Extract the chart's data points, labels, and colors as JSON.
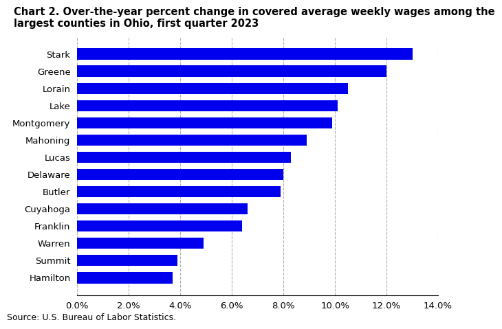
{
  "title_line1": "Chart 2. Over-the-year percent change in covered average weekly wages among the",
  "title_line2": "largest counties in Ohio, first quarter 2023",
  "categories": [
    "Hamilton",
    "Summit",
    "Warren",
    "Franklin",
    "Cuyahoga",
    "Butler",
    "Delaware",
    "Lucas",
    "Mahoning",
    "Montgomery",
    "Lake",
    "Lorain",
    "Greene",
    "Stark"
  ],
  "values": [
    3.7,
    3.9,
    4.9,
    6.4,
    6.6,
    7.9,
    8.0,
    8.3,
    8.9,
    9.9,
    10.1,
    10.5,
    12.0,
    13.0
  ],
  "bar_color": "#0000ee",
  "xlim": [
    0,
    14.0
  ],
  "xticks": [
    0,
    2.0,
    4.0,
    6.0,
    8.0,
    10.0,
    12.0,
    14.0
  ],
  "source": "Source: U.S. Bureau of Labor Statistics.",
  "background_color": "#ffffff",
  "grid_color": "#b0b0b0",
  "title_fontsize": 10.5,
  "label_fontsize": 9.5,
  "tick_fontsize": 9.5,
  "source_fontsize": 9
}
